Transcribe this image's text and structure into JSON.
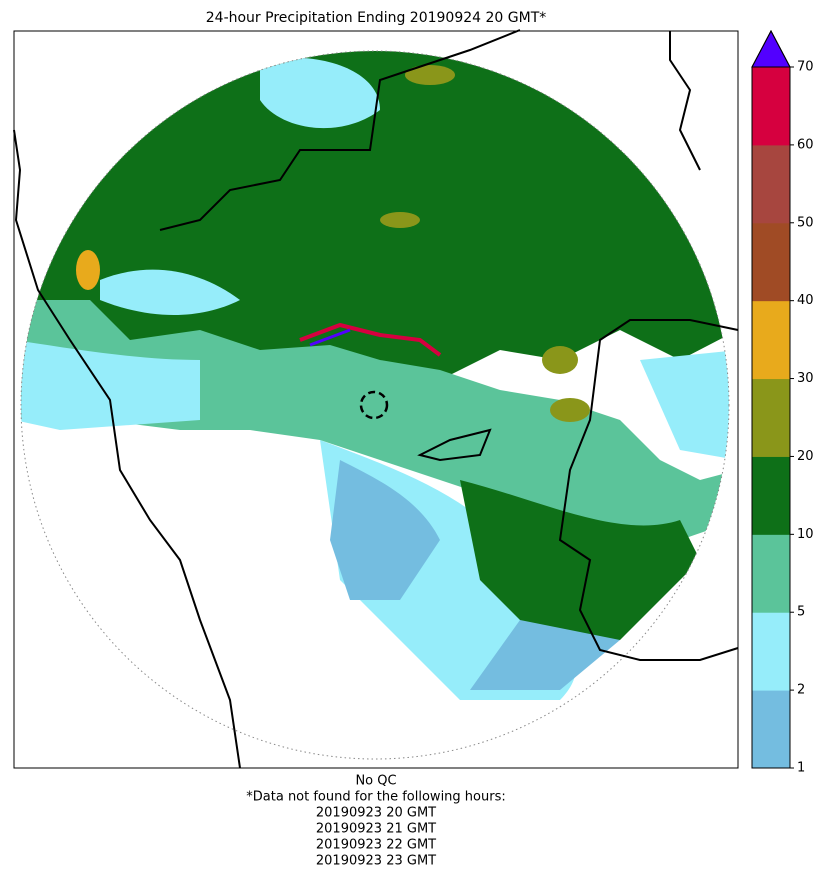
{
  "title": "24-hour Precipitation Ending 20190924 20 GMT*",
  "colorbar": {
    "ticks": [
      1,
      2,
      5,
      10,
      20,
      30,
      40,
      50,
      60,
      70
    ],
    "colors": [
      "#74bde0",
      "#96edfa",
      "#5bc49a",
      "#0e7018",
      "#8a961a",
      "#e8aa1c",
      "#a04b25",
      "#a7463f",
      "#d6003f"
    ],
    "over_color": "#5200ff"
  },
  "footer": [
    "No QC",
    "*Data not found for the following hours:",
    "20190923 20 GMT",
    "20190923 21 GMT",
    "20190923 22 GMT",
    "20190923 23 GMT"
  ]
}
